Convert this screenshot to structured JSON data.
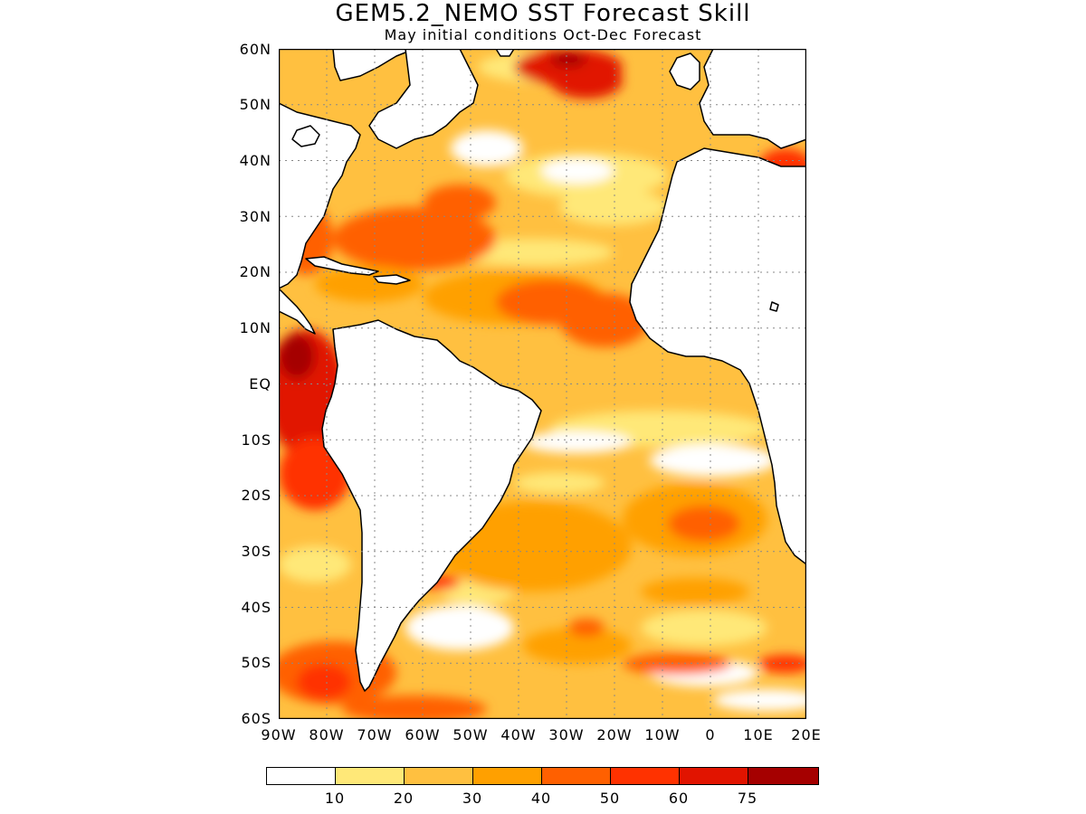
{
  "title": "GEM5.2_NEMO SST Forecast Skill",
  "subtitle": "May initial conditions  Oct-Dec Forecast",
  "lat_labels": [
    "60N",
    "50N",
    "40N",
    "30N",
    "20N",
    "10N",
    "EQ",
    "10S",
    "20S",
    "30S",
    "40S",
    "50S",
    "60S"
  ],
  "lon_labels": [
    "90W",
    "80W",
    "70W",
    "60W",
    "50W",
    "40W",
    "30W",
    "20W",
    "10W",
    "0",
    "10E",
    "20E"
  ],
  "colorbar": {
    "colors": [
      "#ffffff",
      "#ffe878",
      "#ffc040",
      "#ffa000",
      "#ff6000",
      "#ff3200",
      "#e11400",
      "#a50000"
    ],
    "labels": [
      "10",
      "20",
      "30",
      "40",
      "50",
      "60",
      "75"
    ]
  },
  "map": {
    "land_color": "#ffffff",
    "coast_color": "#000000",
    "grid_style": "dotted",
    "lat_range": [
      -60,
      60
    ],
    "lon_range": [
      -90,
      20
    ]
  }
}
